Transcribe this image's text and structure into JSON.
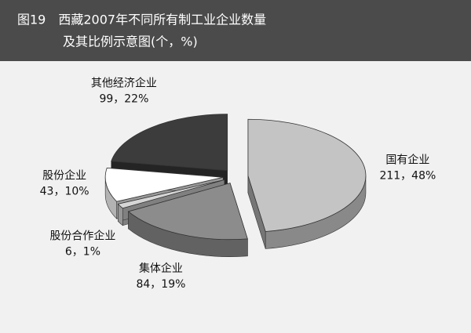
{
  "chart_data": {
    "type": "pie3d",
    "title": [
      "图19　西藏2007年不同所有制工业企业数量",
      "及其比例示意图(个，%)"
    ],
    "categories": [
      "国有企业",
      "集体企业",
      "股份合作企业",
      "股份企业",
      "其他经济企业"
    ],
    "values": [
      211,
      84,
      6,
      43,
      99
    ],
    "value_labels": [
      "211，48%",
      "84，19%",
      "6，1%",
      "43，10%",
      "99，22%"
    ],
    "colors": [
      "#c4c4c4",
      "#8c8c8c",
      "#d6d6d6",
      "#ffffff",
      "#3c3c3c"
    ]
  }
}
